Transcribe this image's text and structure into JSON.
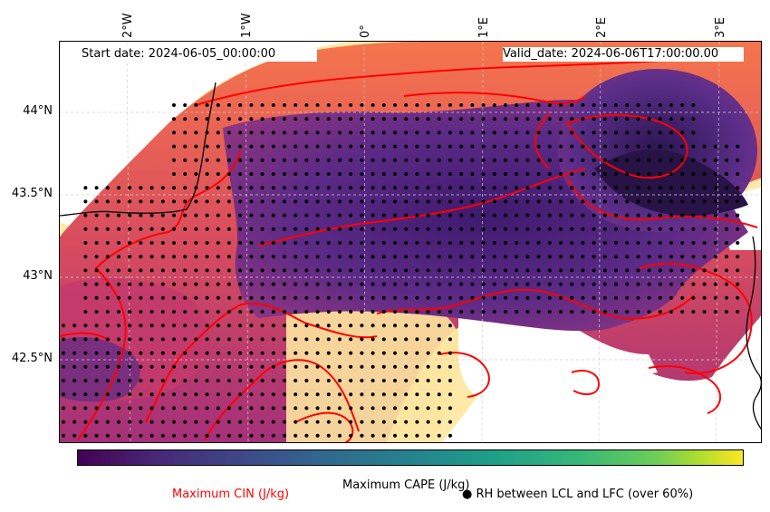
{
  "map": {
    "start_date": "Start date: 2024-06-05_00:00:00",
    "valid_date": "Valid_date: 2024-06-06T17:00:00.00",
    "lon_ticks": [
      "2°W",
      "1°W",
      "0°",
      "1°E",
      "2°E",
      "3°E"
    ],
    "lat_ticks": [
      "44°N",
      "43.5°N",
      "43°N",
      "42.5°N"
    ],
    "colors": {
      "cin_contour": "#ff0000",
      "coastline": "#000000",
      "dot": "#000000",
      "cape_low": "#fdfac0",
      "cape_mid": "#f06c4a",
      "cape_high": "#5b2a86"
    }
  },
  "legend": {
    "colorbar_label": "Maximum CAPE (J/kg)",
    "cin_label": "Maximum CIN (J/kg)",
    "cin_color": "#ff0000",
    "rh_symbol": "●",
    "rh_label": "RH between LCL and LFC (over 60%)"
  }
}
